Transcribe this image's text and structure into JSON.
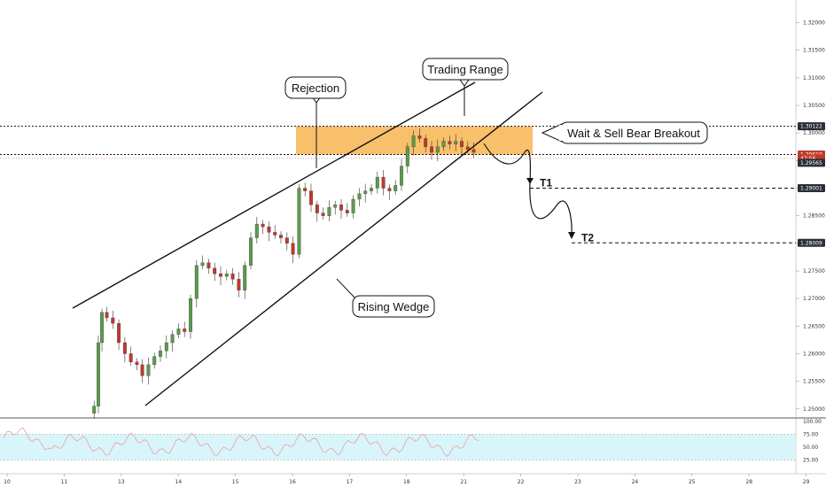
{
  "chart_data": {
    "type": "candlestick",
    "price_axis": {
      "range": [
        1.249,
        1.3225
      ],
      "ticks": [
        "1.32000",
        "1.31500",
        "1.31000",
        "1.30500",
        "1.30000",
        "1.29500",
        "1.29000",
        "1.28500",
        "1.28000",
        "1.27500",
        "1.27000",
        "1.26500",
        "1.26000",
        "1.25500",
        "1.25000"
      ]
    },
    "tags": [
      {
        "label": "1.30122",
        "value": 1.30122,
        "style": "dark"
      },
      {
        "label": "1.29610",
        "value": 1.2961,
        "style": "red"
      },
      {
        "label": "47:56",
        "value": 1.2954,
        "style": "red"
      },
      {
        "label": "1.29565",
        "value": 1.2946,
        "style": "dark"
      },
      {
        "label": "1.29001",
        "value": 1.29001,
        "style": "dark"
      },
      {
        "label": "1.28009",
        "value": 1.28009,
        "style": "dark"
      }
    ],
    "date_labels": [
      {
        "label": "10",
        "x": 0
      },
      {
        "label": "11",
        "x": 1
      },
      {
        "label": "13",
        "x": 2
      },
      {
        "label": "14",
        "x": 3
      },
      {
        "label": "15",
        "x": 4
      },
      {
        "label": "16",
        "x": 5
      },
      {
        "label": "17",
        "x": 6
      },
      {
        "label": "18",
        "x": 7
      },
      {
        "label": "21",
        "x": 8
      },
      {
        "label": "22",
        "x": 9
      },
      {
        "label": "23",
        "x": 10
      },
      {
        "label": "24",
        "x": 11
      },
      {
        "label": "25",
        "x": 12
      },
      {
        "label": "28",
        "x": 13
      },
      {
        "label": "29",
        "x": 14
      }
    ],
    "trading_range": {
      "top": 1.30122,
      "bottom": 1.2961
    },
    "wedge_upper": [
      {
        "x": 0.18,
        "y": 1.2684
      },
      {
        "x": 9.16,
        "y": 1.304
      }
    ],
    "wedge_lower": [
      {
        "x": 1.45,
        "y": 1.2515
      },
      {
        "x": 9.3,
        "y": 1.3055
      }
    ],
    "targets": [
      {
        "label": "T1",
        "value": 1.29001
      },
      {
        "label": "T2",
        "value": 1.28009
      }
    ],
    "callouts": [
      {
        "label": "Rejection"
      },
      {
        "label": "Trading Range"
      },
      {
        "label": "Wait & Sell Bear Breakout"
      },
      {
        "label": "Rising Wedge"
      }
    ],
    "rsi": {
      "ticks": [
        "100.00",
        "75.00",
        "50.00",
        "25.00"
      ],
      "overbought": 75,
      "oversold": 25
    },
    "colors": {
      "up": "#5b9a4b",
      "down": "#c0392b",
      "zone": "#f7b046",
      "rsi_line": "#e8a0a8",
      "rsi_fill": "#d8f5fa"
    }
  }
}
